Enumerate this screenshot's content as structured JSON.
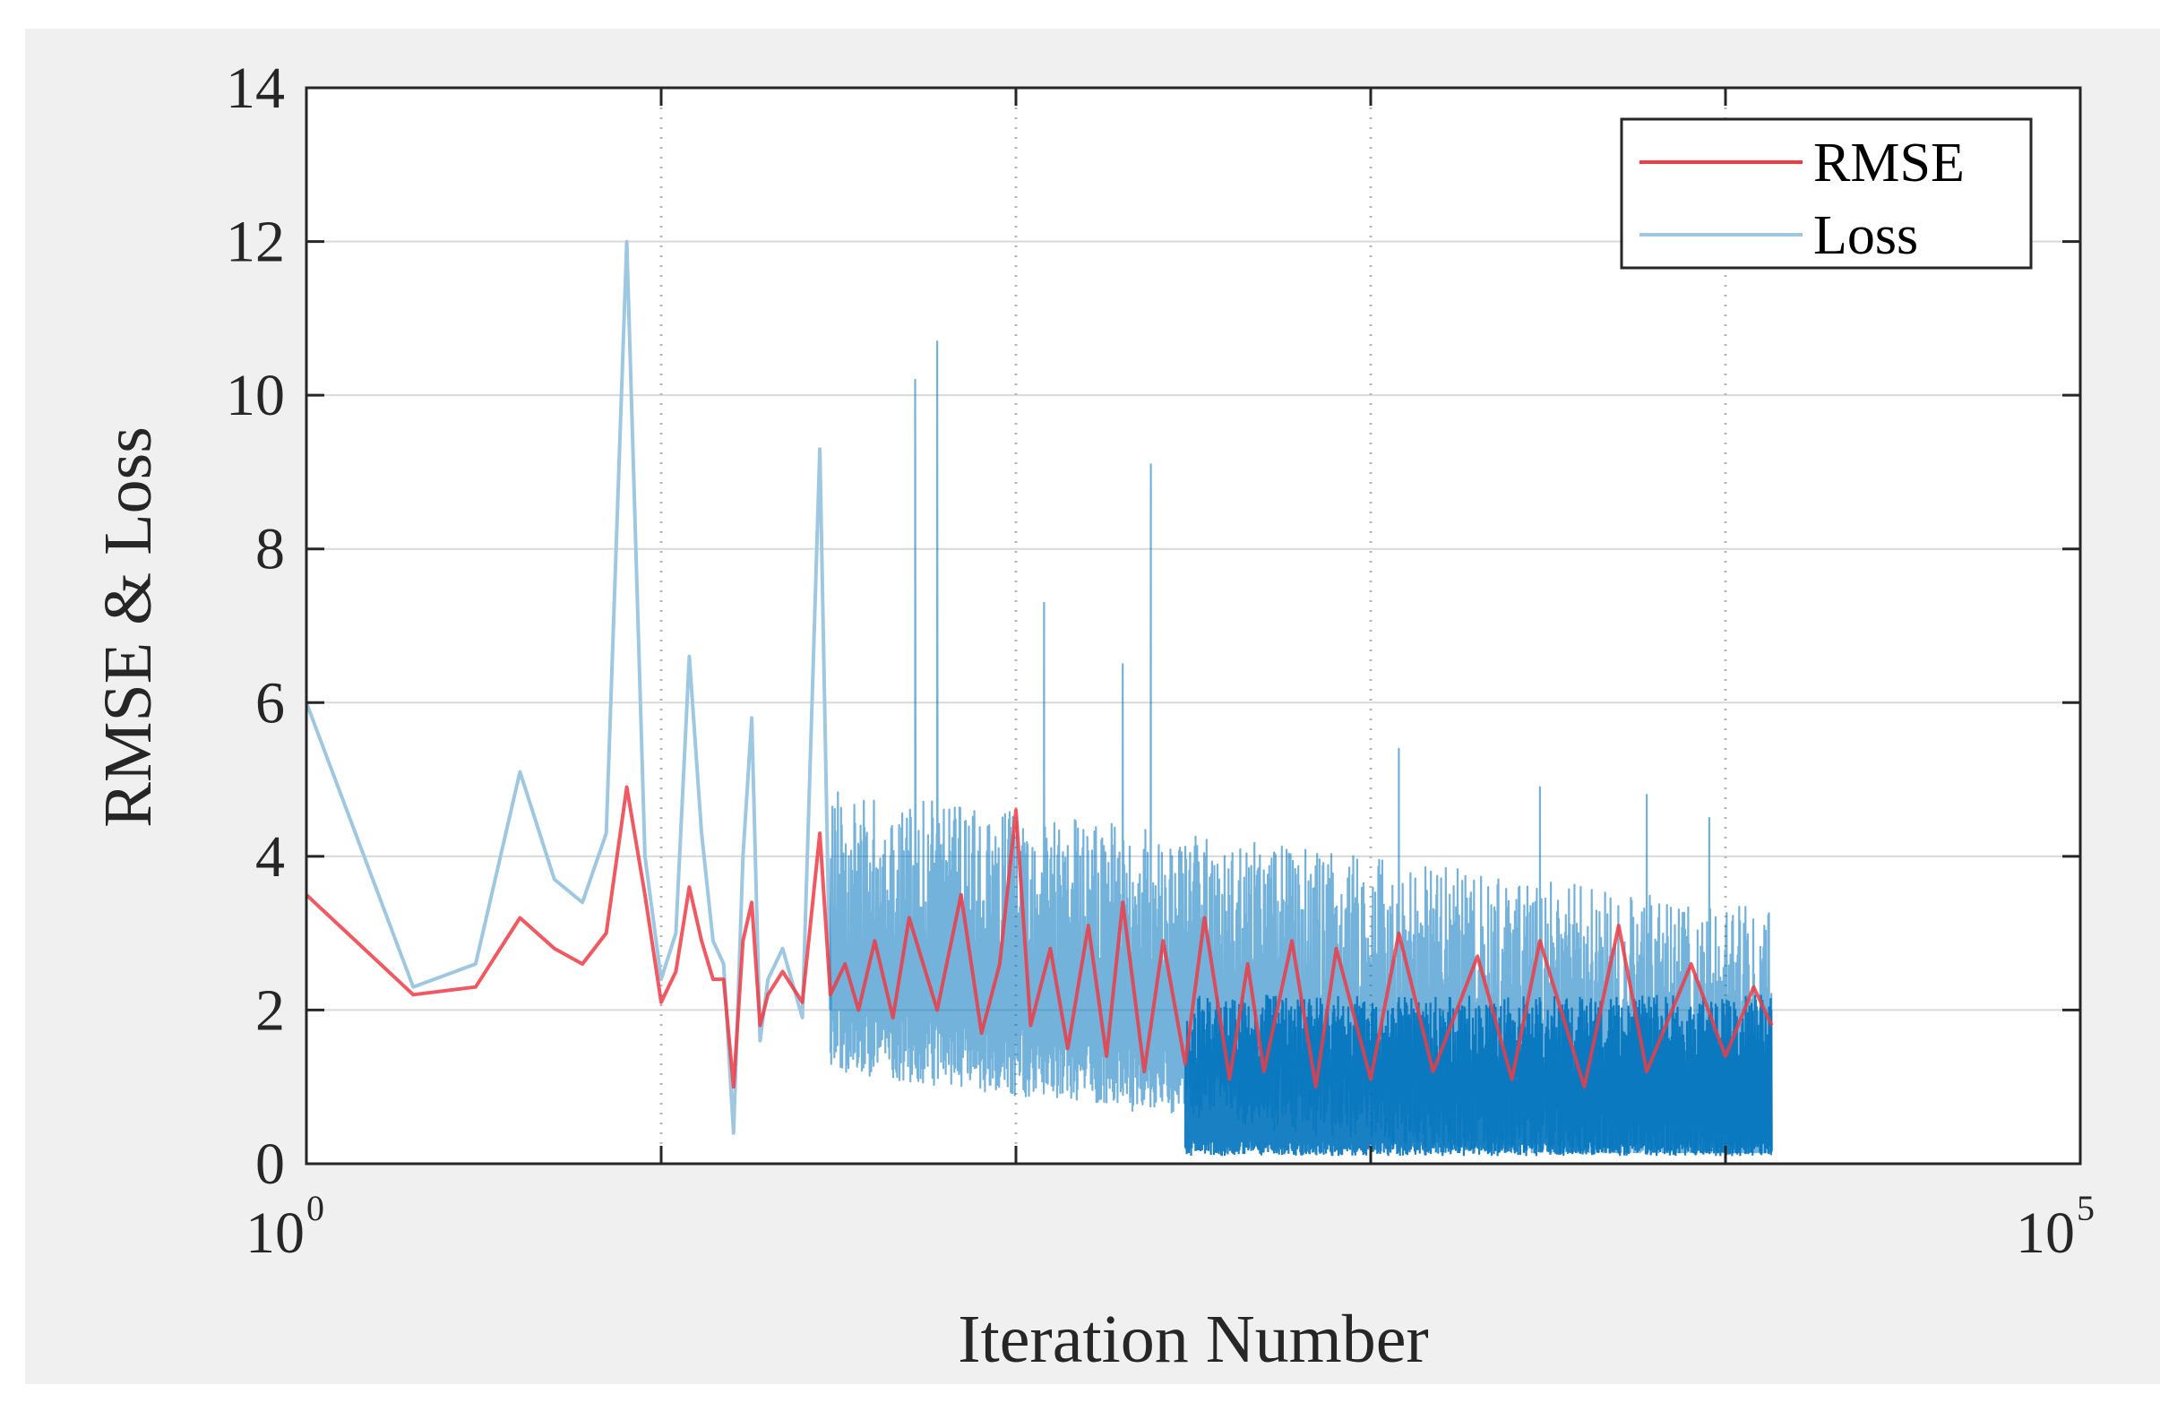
{
  "chart_data": {
    "type": "line",
    "title": "",
    "xlabel": "Iteration Number",
    "ylabel": "RMSE & Loss",
    "xscale": "log",
    "xlim": [
      1,
      100000
    ],
    "ylim": [
      0,
      14
    ],
    "grid": true,
    "legend_position": "top-right",
    "x_ticks": [
      {
        "base": "10",
        "exp": "0",
        "value": 1
      },
      {
        "base": "10",
        "exp": "5",
        "value": 100000
      }
    ],
    "y_ticks": [
      "0",
      "2",
      "4",
      "6",
      "8",
      "10",
      "12",
      "14"
    ],
    "colors": {
      "rmse": "#ee3b44",
      "loss": "#0072bd",
      "loss_light": "#9ec8e2",
      "figure_bg": "#f0f0f0",
      "axes_bg": "#ffffff",
      "grid": "#d9d9d9"
    },
    "series": [
      {
        "name": "RMSE",
        "color": "#ee3b44",
        "x": [
          1,
          2,
          3,
          4,
          5,
          6,
          7,
          8,
          9,
          10,
          11,
          12,
          13,
          14,
          15,
          16,
          17,
          18,
          19,
          20,
          22,
          25,
          28,
          30,
          33,
          36,
          40,
          45,
          50,
          60,
          70,
          80,
          90,
          100,
          110,
          125,
          140,
          160,
          180,
          200,
          230,
          260,
          300,
          340,
          400,
          450,
          500,
          600,
          700,
          800,
          1000,
          1200,
          1500,
          2000,
          2500,
          3000,
          4000,
          5000,
          6000,
          8000,
          10000,
          12000,
          13500
        ],
        "values": [
          3.5,
          2.2,
          2.3,
          3.2,
          2.8,
          2.6,
          3.0,
          4.9,
          3.5,
          2.1,
          2.5,
          3.6,
          2.9,
          2.4,
          2.4,
          1.0,
          2.9,
          3.4,
          1.8,
          2.2,
          2.5,
          2.1,
          4.3,
          2.2,
          2.6,
          2.0,
          2.9,
          1.9,
          3.2,
          2.0,
          3.5,
          1.7,
          2.6,
          4.6,
          1.8,
          2.8,
          1.5,
          3.1,
          1.4,
          3.4,
          1.2,
          2.9,
          1.3,
          3.2,
          1.1,
          2.6,
          1.2,
          2.9,
          1.0,
          2.8,
          1.1,
          3.0,
          1.2,
          2.7,
          1.1,
          2.9,
          1.0,
          3.1,
          1.2,
          2.6,
          1.4,
          2.3,
          1.8
        ]
      },
      {
        "name": "Loss",
        "color": "#9ec8e2",
        "x": [
          1,
          2,
          3,
          4,
          5,
          6,
          7,
          8,
          9,
          10,
          11,
          12,
          13,
          14,
          15,
          16,
          17,
          18,
          19,
          20,
          22,
          25,
          28,
          30
        ],
        "values": [
          6.0,
          2.3,
          2.6,
          5.1,
          3.7,
          3.4,
          4.3,
          12.0,
          4.0,
          2.4,
          3.0,
          6.6,
          4.3,
          2.9,
          2.6,
          0.4,
          4.0,
          5.8,
          1.6,
          2.4,
          2.8,
          1.9,
          9.3,
          2.0
        ]
      }
    ]
  }
}
